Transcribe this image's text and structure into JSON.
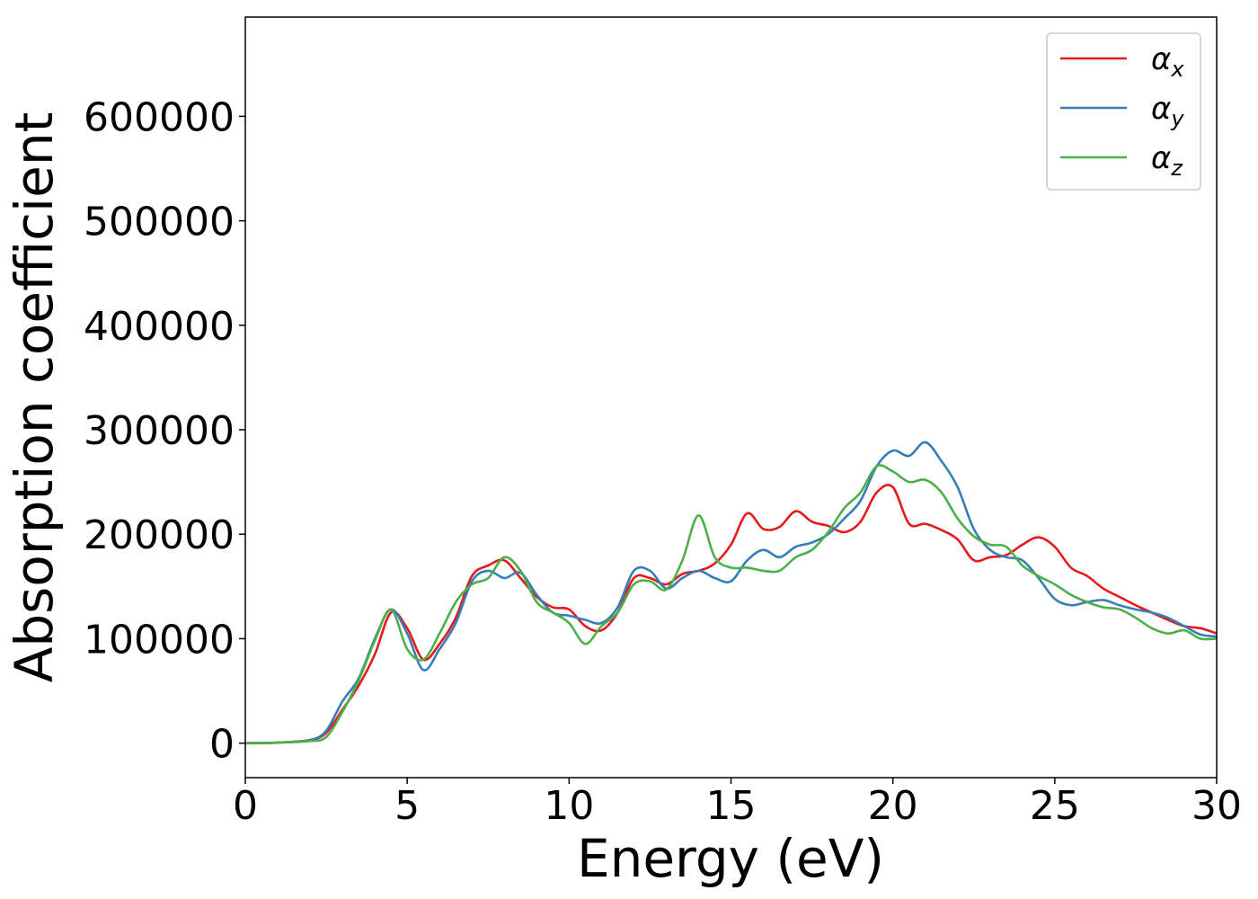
{
  "chart_data": {
    "type": "line",
    "xlabel": "Energy (eV)",
    "ylabel": "Absorption coefficient",
    "xlim": [
      0,
      30
    ],
    "ylim": [
      -33000,
      695000
    ],
    "xticks": [
      0,
      5,
      10,
      15,
      20,
      25,
      30
    ],
    "xtick_labels": [
      "0",
      "5",
      "10",
      "15",
      "20",
      "25",
      "30"
    ],
    "yticks": [
      0,
      100000,
      200000,
      300000,
      400000,
      500000,
      600000
    ],
    "ytick_labels": [
      "0",
      "100000",
      "200000",
      "300000",
      "400000",
      "500000",
      "600000"
    ],
    "grid": false,
    "legend_position": "top-right",
    "series": [
      {
        "name": "αx",
        "legend_base": "α",
        "legend_sub": "x",
        "color": "#e41a1c",
        "x": [
          0,
          1,
          2,
          2.5,
          3,
          3.5,
          4,
          4.5,
          5,
          5.5,
          6,
          6.5,
          7,
          7.5,
          8,
          8.5,
          9,
          9.5,
          10,
          10.5,
          11,
          11.5,
          12,
          12.5,
          13,
          13.5,
          14,
          14.5,
          15,
          15.5,
          16,
          16.5,
          17,
          17.5,
          18,
          18.5,
          19,
          19.5,
          20,
          20.5,
          21,
          21.5,
          22,
          22.5,
          23,
          23.5,
          24,
          24.5,
          25,
          25.5,
          26,
          26.5,
          27,
          27.5,
          28,
          28.5,
          29,
          29.5,
          30
        ],
        "y": [
          0,
          500,
          3000,
          10000,
          32000,
          55000,
          85000,
          125000,
          110000,
          80000,
          95000,
          120000,
          160000,
          170000,
          175000,
          158000,
          140000,
          130000,
          128000,
          112000,
          108000,
          125000,
          158000,
          158000,
          152000,
          162000,
          165000,
          172000,
          190000,
          220000,
          205000,
          207000,
          222000,
          212000,
          208000,
          202000,
          212000,
          240000,
          245000,
          210000,
          210000,
          204000,
          195000,
          175000,
          178000,
          180000,
          190000,
          197000,
          188000,
          168000,
          160000,
          148000,
          140000,
          132000,
          125000,
          118000,
          112000,
          110000,
          105000
        ]
      },
      {
        "name": "αy",
        "legend_base": "α",
        "legend_sub": "y",
        "color": "#377eb8",
        "x": [
          0,
          1,
          2,
          2.5,
          3,
          3.5,
          4,
          4.5,
          5,
          5.5,
          6,
          6.5,
          7,
          7.5,
          8,
          8.5,
          9,
          9.5,
          10,
          10.5,
          11,
          11.5,
          12,
          12.5,
          13,
          13.5,
          14,
          14.5,
          15,
          15.5,
          16,
          16.5,
          17,
          17.5,
          18,
          18.5,
          19,
          19.5,
          20,
          20.5,
          21,
          21.5,
          22,
          22.5,
          23,
          23.5,
          24,
          24.5,
          25,
          25.5,
          26,
          26.5,
          27,
          27.5,
          28,
          28.5,
          29,
          29.5,
          30
        ],
        "y": [
          0,
          500,
          3000,
          12000,
          40000,
          62000,
          100000,
          128000,
          105000,
          70000,
          90000,
          115000,
          155000,
          165000,
          158000,
          163000,
          142000,
          125000,
          122000,
          118000,
          115000,
          130000,
          165000,
          165000,
          148000,
          158000,
          165000,
          158000,
          155000,
          175000,
          185000,
          178000,
          188000,
          192000,
          200000,
          215000,
          232000,
          265000,
          280000,
          275000,
          288000,
          270000,
          245000,
          205000,
          185000,
          178000,
          175000,
          158000,
          138000,
          132000,
          135000,
          137000,
          132000,
          128000,
          125000,
          120000,
          112000,
          104000,
          102000
        ]
      },
      {
        "name": "αz",
        "legend_base": "α",
        "legend_sub": "z",
        "color": "#4daf4a",
        "x": [
          0,
          1,
          2,
          2.5,
          3,
          3.5,
          4,
          4.5,
          5,
          5.5,
          6,
          6.5,
          7,
          7.5,
          8,
          8.5,
          9,
          9.5,
          10,
          10.5,
          11,
          11.5,
          12,
          12.5,
          13,
          13.5,
          14,
          14.5,
          15,
          15.5,
          16,
          16.5,
          17,
          17.5,
          18,
          18.5,
          19,
          19.5,
          20,
          20.5,
          21,
          21.5,
          22,
          22.5,
          23,
          23.5,
          24,
          24.5,
          25,
          25.5,
          26,
          26.5,
          27,
          27.5,
          28,
          28.5,
          29,
          29.5,
          30
        ],
        "y": [
          0,
          500,
          2000,
          6000,
          30000,
          60000,
          98000,
          128000,
          90000,
          80000,
          105000,
          135000,
          152000,
          158000,
          178000,
          165000,
          135000,
          125000,
          115000,
          95000,
          112000,
          125000,
          152000,
          155000,
          147000,
          175000,
          218000,
          178000,
          168000,
          168000,
          165000,
          165000,
          178000,
          185000,
          202000,
          225000,
          240000,
          265000,
          260000,
          250000,
          252000,
          240000,
          215000,
          198000,
          190000,
          188000,
          170000,
          160000,
          152000,
          142000,
          135000,
          130000,
          128000,
          120000,
          110000,
          105000,
          108000,
          100000,
          100000
        ]
      }
    ]
  }
}
